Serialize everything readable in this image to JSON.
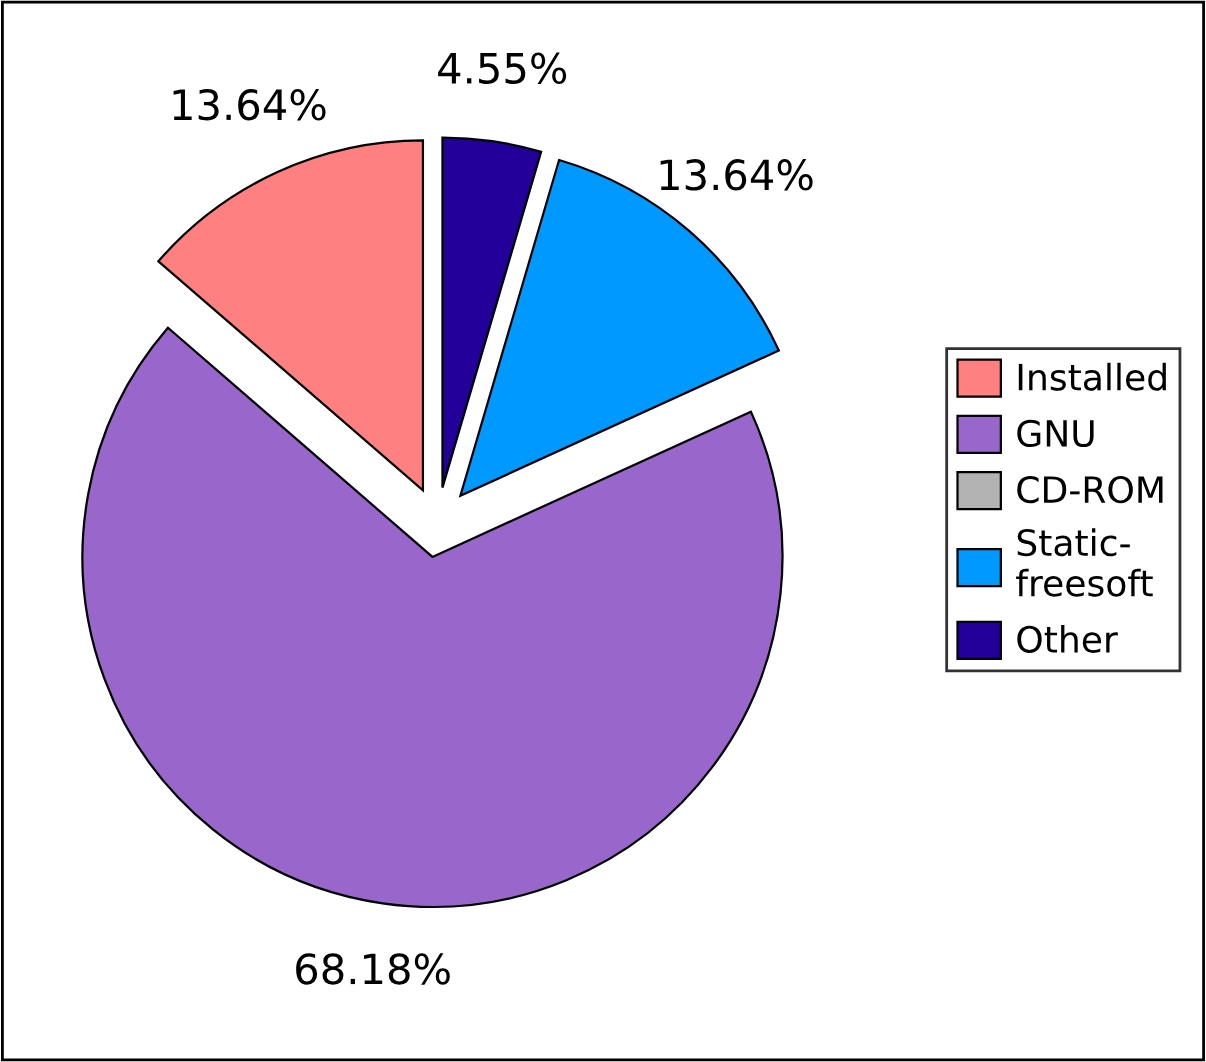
{
  "chart_data": {
    "type": "pie",
    "categories": [
      "Installed",
      "GNU",
      "CD-ROM",
      "Static-freesoft",
      "Other"
    ],
    "values": [
      13.64,
      68.18,
      0,
      13.64,
      4.55
    ],
    "colors": [
      "#ff8080",
      "#9966cc",
      "#b3b3b3",
      "#0099ff",
      "#220099"
    ],
    "value_labels": [
      "13.64%",
      "68.18%",
      null,
      "13.64%",
      "4.55%"
    ],
    "legend": "right"
  }
}
